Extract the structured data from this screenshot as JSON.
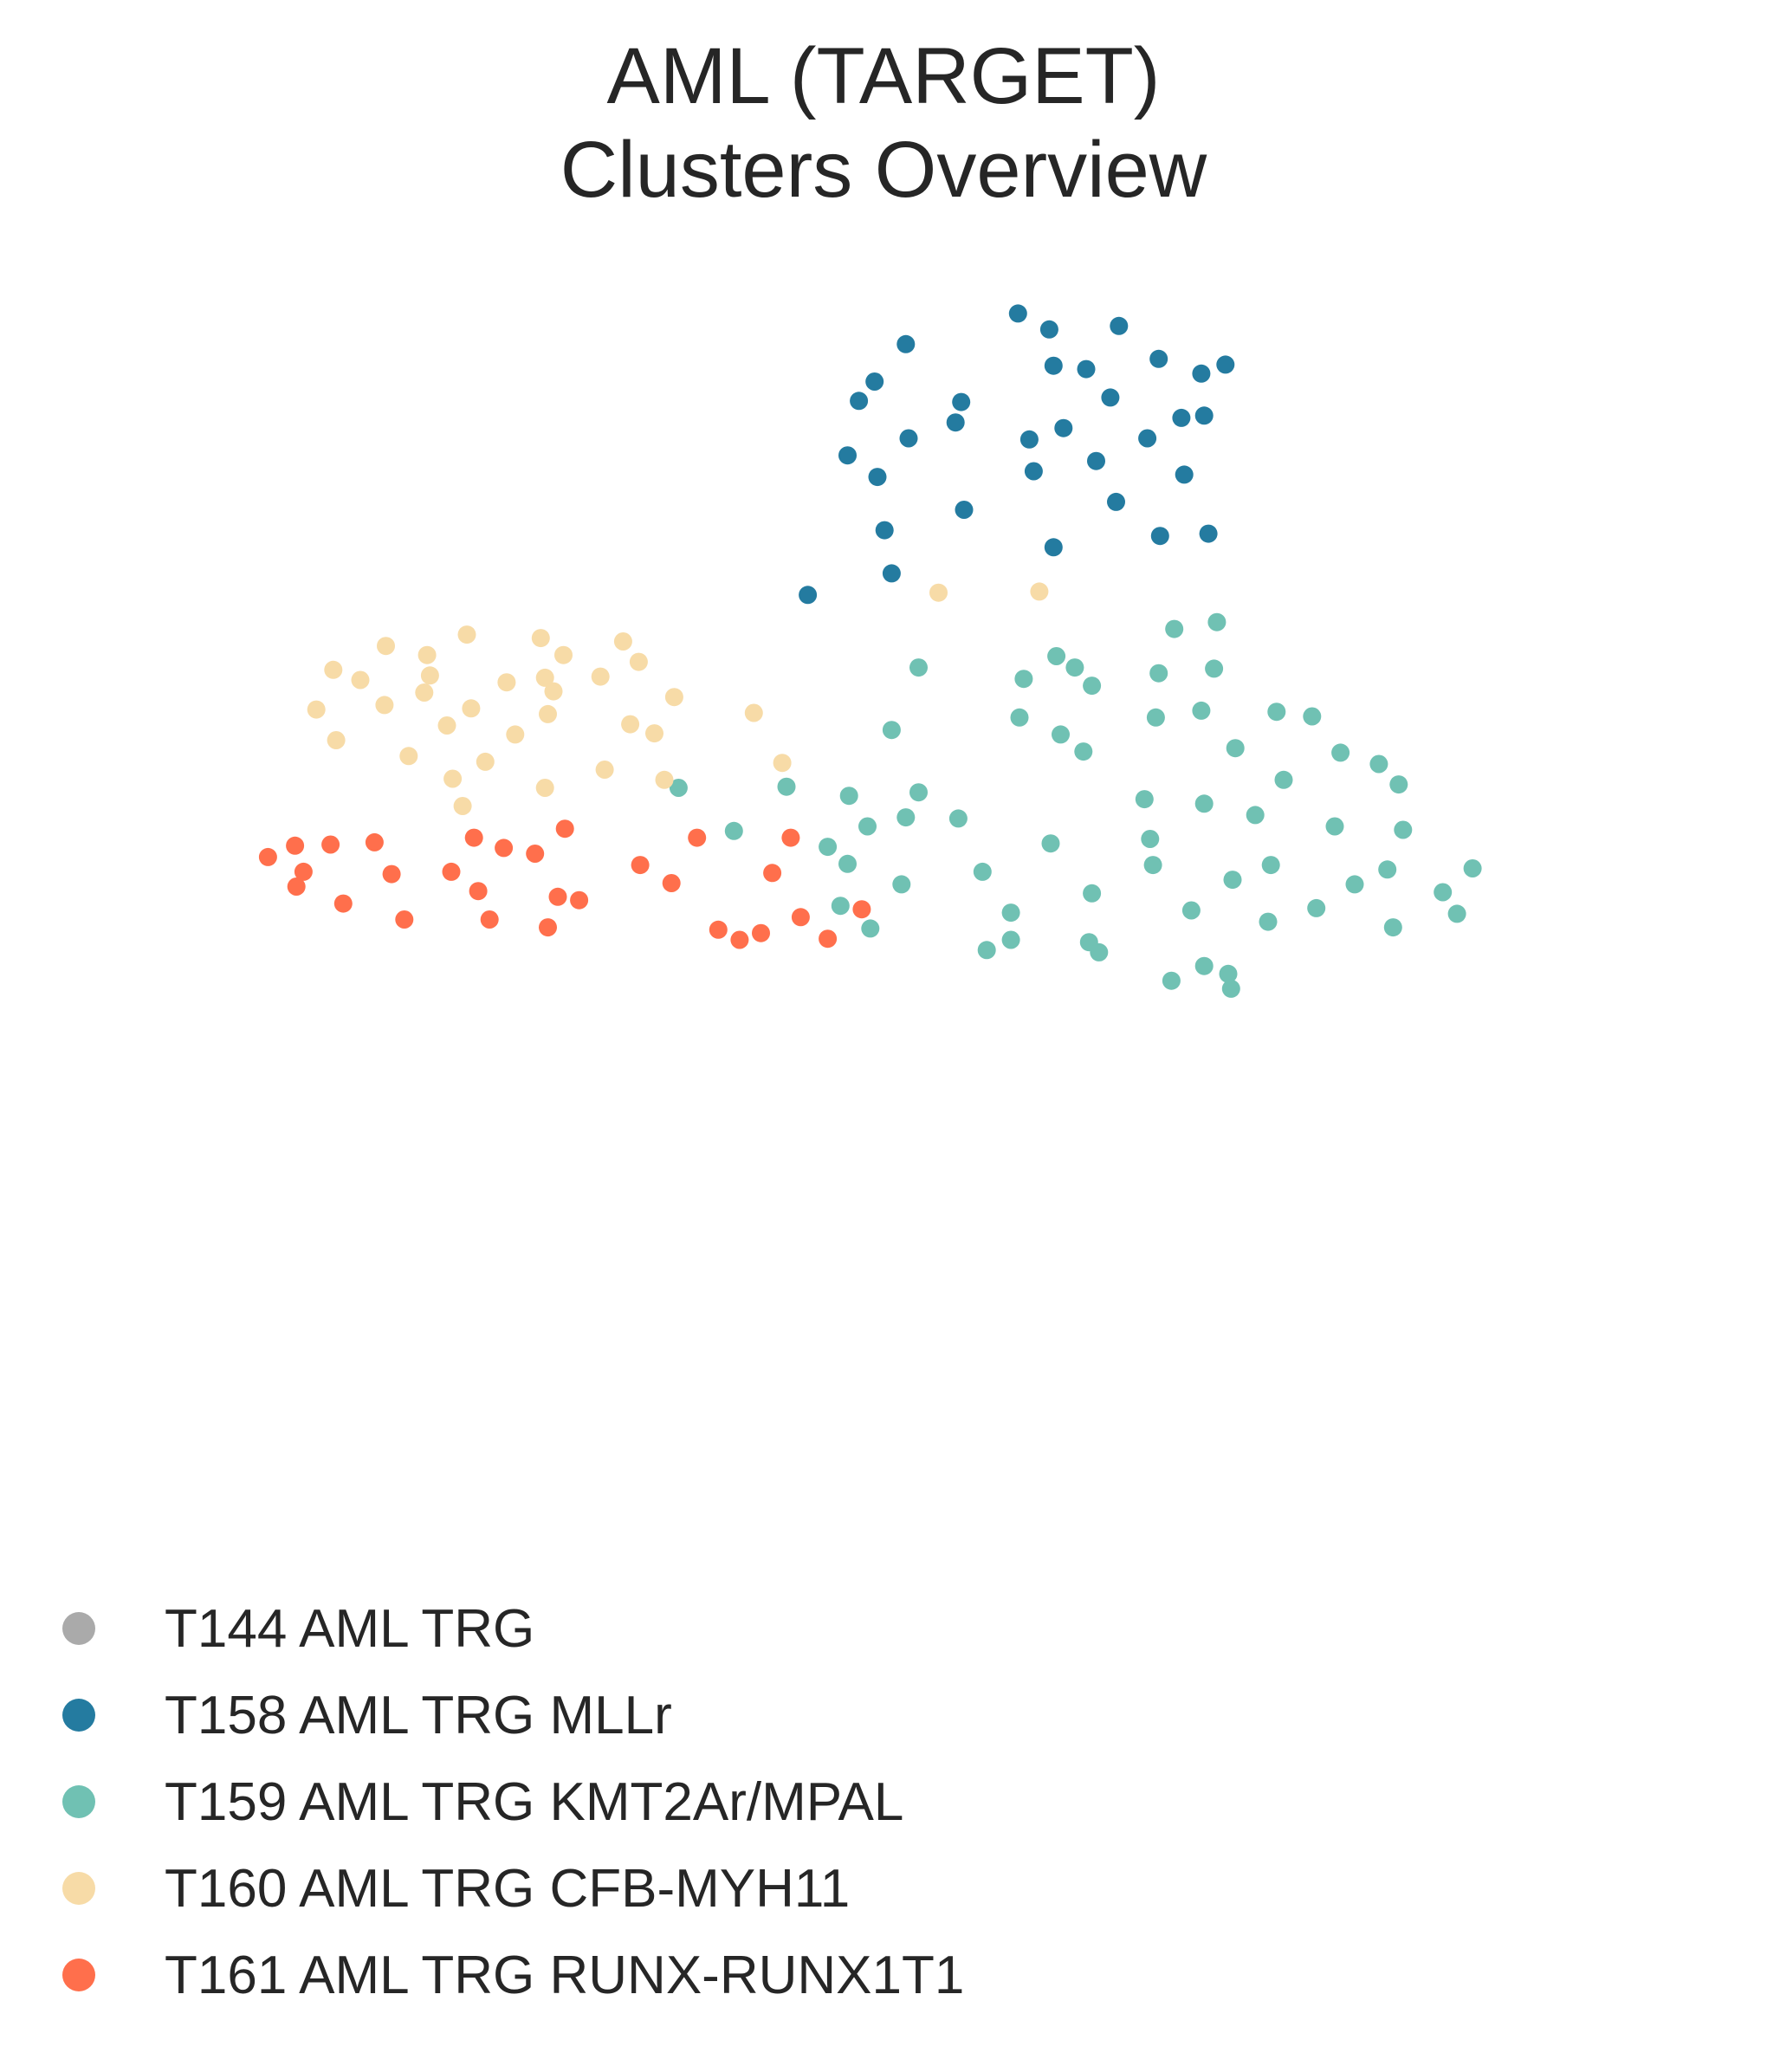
{
  "chart_data": {
    "type": "scatter",
    "title": "AML (TARGET)",
    "subtitle": "Clusters Overview",
    "xlabel": "",
    "ylabel": "",
    "axes_visible": false,
    "grid": false,
    "legend_position": "bottom-left",
    "xlim": [
      0,
      100
    ],
    "ylim": [
      0,
      100
    ],
    "series": [
      {
        "name": "T144 AML TRG",
        "color": "#aaaaaa",
        "points": []
      },
      {
        "name": "T158 AML TRG MLLr",
        "color": "#247ba0",
        "points": [
          [
            61.3,
            96.8
          ],
          [
            63.5,
            95.4
          ],
          [
            68.4,
            95.7
          ],
          [
            53.4,
            94.1
          ],
          [
            71.2,
            92.8
          ],
          [
            74.2,
            91.5
          ],
          [
            66.1,
            91.9
          ],
          [
            63.8,
            92.2
          ],
          [
            75.9,
            92.3
          ],
          [
            51.2,
            90.8
          ],
          [
            50.1,
            89.1
          ],
          [
            57.3,
            89.0
          ],
          [
            67.8,
            89.4
          ],
          [
            72.8,
            87.6
          ],
          [
            74.4,
            87.8
          ],
          [
            56.9,
            87.2
          ],
          [
            64.5,
            86.7
          ],
          [
            70.4,
            85.8
          ],
          [
            53.6,
            85.8
          ],
          [
            62.1,
            85.7
          ],
          [
            49.3,
            84.3
          ],
          [
            66.8,
            83.8
          ],
          [
            51.4,
            82.4
          ],
          [
            62.4,
            82.9
          ],
          [
            73.0,
            82.6
          ],
          [
            68.2,
            80.2
          ],
          [
            57.5,
            79.5
          ],
          [
            51.9,
            77.7
          ],
          [
            71.3,
            77.2
          ],
          [
            74.7,
            77.4
          ],
          [
            63.8,
            76.2
          ],
          [
            52.4,
            73.9
          ],
          [
            46.5,
            72.0
          ]
        ]
      },
      {
        "name": "T159 AML TRG KMT2Ar/MPAL",
        "color": "#70c1b3",
        "points": [
          [
            75.3,
            69.6
          ],
          [
            72.3,
            69.0
          ],
          [
            64.0,
            66.6
          ],
          [
            65.3,
            65.6
          ],
          [
            75.1,
            65.5
          ],
          [
            71.2,
            65.1
          ],
          [
            54.3,
            65.6
          ],
          [
            61.7,
            64.6
          ],
          [
            66.5,
            64.0
          ],
          [
            74.2,
            61.8
          ],
          [
            79.5,
            61.7
          ],
          [
            82.0,
            61.3
          ],
          [
            61.4,
            61.2
          ],
          [
            71.0,
            61.2
          ],
          [
            52.4,
            60.1
          ],
          [
            64.3,
            59.7
          ],
          [
            76.6,
            58.5
          ],
          [
            65.9,
            58.2
          ],
          [
            84.0,
            58.1
          ],
          [
            86.7,
            57.1
          ],
          [
            80.0,
            55.7
          ],
          [
            88.1,
            55.3
          ],
          [
            37.4,
            55.0
          ],
          [
            45.0,
            55.1
          ],
          [
            54.3,
            54.6
          ],
          [
            49.4,
            54.3
          ],
          [
            70.2,
            54.0
          ],
          [
            74.4,
            53.6
          ],
          [
            78.0,
            52.6
          ],
          [
            53.4,
            52.4
          ],
          [
            57.1,
            52.3
          ],
          [
            83.6,
            51.6
          ],
          [
            88.4,
            51.3
          ],
          [
            50.7,
            51.6
          ],
          [
            41.3,
            51.2
          ],
          [
            70.6,
            50.5
          ],
          [
            63.6,
            50.1
          ],
          [
            47.9,
            49.8
          ],
          [
            79.1,
            48.2
          ],
          [
            70.8,
            48.2
          ],
          [
            87.3,
            47.8
          ],
          [
            49.3,
            48.3
          ],
          [
            93.3,
            47.9
          ],
          [
            58.8,
            47.6
          ],
          [
            76.4,
            46.9
          ],
          [
            85.0,
            46.5
          ],
          [
            53.1,
            46.5
          ],
          [
            66.5,
            45.7
          ],
          [
            91.2,
            45.8
          ],
          [
            48.8,
            44.6
          ],
          [
            73.5,
            44.2
          ],
          [
            60.8,
            44.0
          ],
          [
            82.3,
            44.4
          ],
          [
            92.2,
            43.9
          ],
          [
            78.9,
            43.2
          ],
          [
            50.9,
            42.6
          ],
          [
            87.7,
            42.7
          ],
          [
            60.8,
            41.6
          ],
          [
            66.3,
            41.4
          ],
          [
            59.1,
            40.7
          ],
          [
            67.0,
            40.5
          ],
          [
            74.4,
            39.3
          ],
          [
            76.1,
            38.6
          ],
          [
            72.1,
            38.0
          ],
          [
            76.3,
            37.3
          ]
        ]
      },
      {
        "name": "T160 AML TRG CFB-MYH11",
        "color": "#f7dba7",
        "points": [
          [
            55.7,
            72.2
          ],
          [
            62.8,
            72.3
          ],
          [
            22.5,
            68.5
          ],
          [
            27.7,
            68.2
          ],
          [
            33.5,
            67.9
          ],
          [
            16.8,
            67.5
          ],
          [
            19.7,
            66.7
          ],
          [
            29.3,
            66.7
          ],
          [
            34.6,
            66.1
          ],
          [
            13.1,
            65.4
          ],
          [
            19.9,
            64.9
          ],
          [
            28.0,
            64.7
          ],
          [
            31.9,
            64.8
          ],
          [
            15.0,
            64.5
          ],
          [
            25.3,
            64.3
          ],
          [
            19.5,
            63.4
          ],
          [
            28.6,
            63.5
          ],
          [
            37.1,
            63.0
          ],
          [
            16.7,
            62.3
          ],
          [
            11.9,
            61.9
          ],
          [
            22.8,
            62.0
          ],
          [
            42.7,
            61.6
          ],
          [
            28.2,
            61.5
          ],
          [
            34.0,
            60.6
          ],
          [
            21.1,
            60.5
          ],
          [
            35.7,
            59.8
          ],
          [
            25.9,
            59.7
          ],
          [
            13.3,
            59.2
          ],
          [
            18.4,
            57.8
          ],
          [
            23.8,
            57.3
          ],
          [
            44.7,
            57.2
          ],
          [
            32.2,
            56.6
          ],
          [
            36.4,
            55.7
          ],
          [
            21.5,
            55.8
          ],
          [
            28.0,
            55.0
          ],
          [
            22.2,
            53.4
          ]
        ]
      },
      {
        "name": "T161 AML TRG RUNX-RUNX1T1",
        "color": "#ff6f4c",
        "points": [
          [
            29.4,
            51.4
          ],
          [
            23.0,
            50.6
          ],
          [
            38.7,
            50.6
          ],
          [
            45.3,
            50.6
          ],
          [
            16.0,
            50.2
          ],
          [
            12.9,
            50.0
          ],
          [
            10.4,
            49.9
          ],
          [
            25.1,
            49.7
          ],
          [
            27.3,
            49.2
          ],
          [
            8.5,
            48.9
          ],
          [
            34.7,
            48.2
          ],
          [
            44.0,
            47.5
          ],
          [
            21.4,
            47.6
          ],
          [
            11.0,
            47.6
          ],
          [
            17.2,
            47.4
          ],
          [
            36.9,
            46.6
          ],
          [
            10.5,
            46.3
          ],
          [
            23.3,
            45.9
          ],
          [
            28.9,
            45.4
          ],
          [
            30.4,
            45.1
          ],
          [
            13.8,
            44.8
          ],
          [
            50.3,
            44.3
          ],
          [
            46.0,
            43.6
          ],
          [
            18.1,
            43.4
          ],
          [
            24.1,
            43.4
          ],
          [
            28.2,
            42.7
          ],
          [
            40.2,
            42.5
          ],
          [
            43.2,
            42.2
          ],
          [
            41.7,
            41.6
          ],
          [
            47.9,
            41.7
          ]
        ]
      }
    ]
  }
}
